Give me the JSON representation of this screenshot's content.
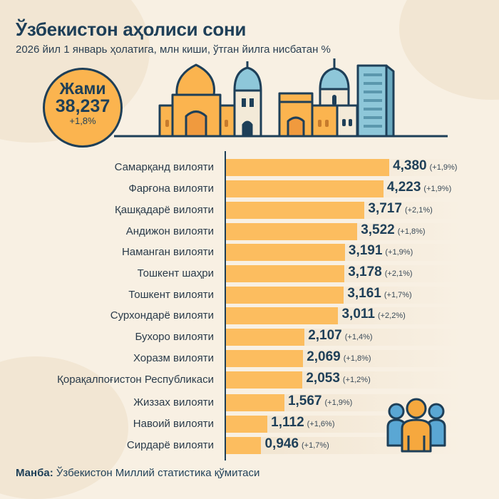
{
  "header": {
    "title": "Ўзбекистон аҳолиси сони",
    "subtitle": "2026 йил 1 январь ҳолатига, млн киши, ўтган йилга нисбатан %"
  },
  "total": {
    "label": "Жами",
    "value": "38,237",
    "change": "+1,8%"
  },
  "icons": [
    "skyline-illustration",
    "people-group-icon"
  ],
  "colors": {
    "background": "#f8f0e3",
    "bar": "#fcbd5f",
    "dark": "#1e3f58",
    "accent_blue": "#8ec7d9"
  },
  "source": {
    "label": "Манба:",
    "text": " Ўзбекистон Миллий статистика қўмитаси"
  },
  "chart_data": {
    "type": "bar",
    "orientation": "horizontal",
    "title": "Ўзбекистон аҳолиси сони",
    "subtitle": "2026 йил 1 январь ҳолатига, млн киши, ўтган йилга нисбатан %",
    "xlabel": "",
    "ylabel": "",
    "unit": "млн киши",
    "grid": false,
    "legend": null,
    "categories": [
      "Самарқанд вилояти",
      "Фарғона вилояти",
      "Қашқадарё вилояти",
      "Андижон вилояти",
      "Наманган вилояти",
      "Тошкент шаҳри",
      "Тошкент вилояти",
      "Сурхондарё вилояти",
      "Бухоро вилояти",
      "Хоразм вилояти",
      "Қорақалпоғистон Республикаси",
      "Жиззах вилояти",
      "Навоий вилояти",
      "Сирдарё вилояти"
    ],
    "values": [
      4.38,
      4.223,
      3.717,
      3.522,
      3.191,
      3.178,
      3.161,
      3.011,
      2.107,
      2.069,
      2.053,
      1.567,
      1.112,
      0.946
    ],
    "value_labels": [
      "4,380",
      "4,223",
      "3,717",
      "3,522",
      "3,191",
      "3,178",
      "3,161",
      "3,011",
      "2,107",
      "2,069",
      "2,053",
      "1,567",
      "1,112",
      "0,946"
    ],
    "change_labels": [
      "(+1,9%)",
      "(+1,9%)",
      "(+2,1%)",
      "(+1,8%)",
      "(+1,9%)",
      "(+2,1%)",
      "(+1,7%)",
      "(+2,2%)",
      "(+1,4%)",
      "(+1,8%)",
      "(+1,2%)",
      "(+1,9%)",
      "(+1,6%)",
      "(+1,7%)"
    ],
    "change_pct": [
      1.9,
      1.9,
      2.1,
      1.8,
      1.9,
      2.1,
      1.7,
      2.2,
      1.4,
      1.8,
      1.2,
      1.9,
      1.6,
      1.7
    ],
    "total": {
      "label": "Жами",
      "value": 38.237,
      "change_pct": 1.8
    }
  }
}
